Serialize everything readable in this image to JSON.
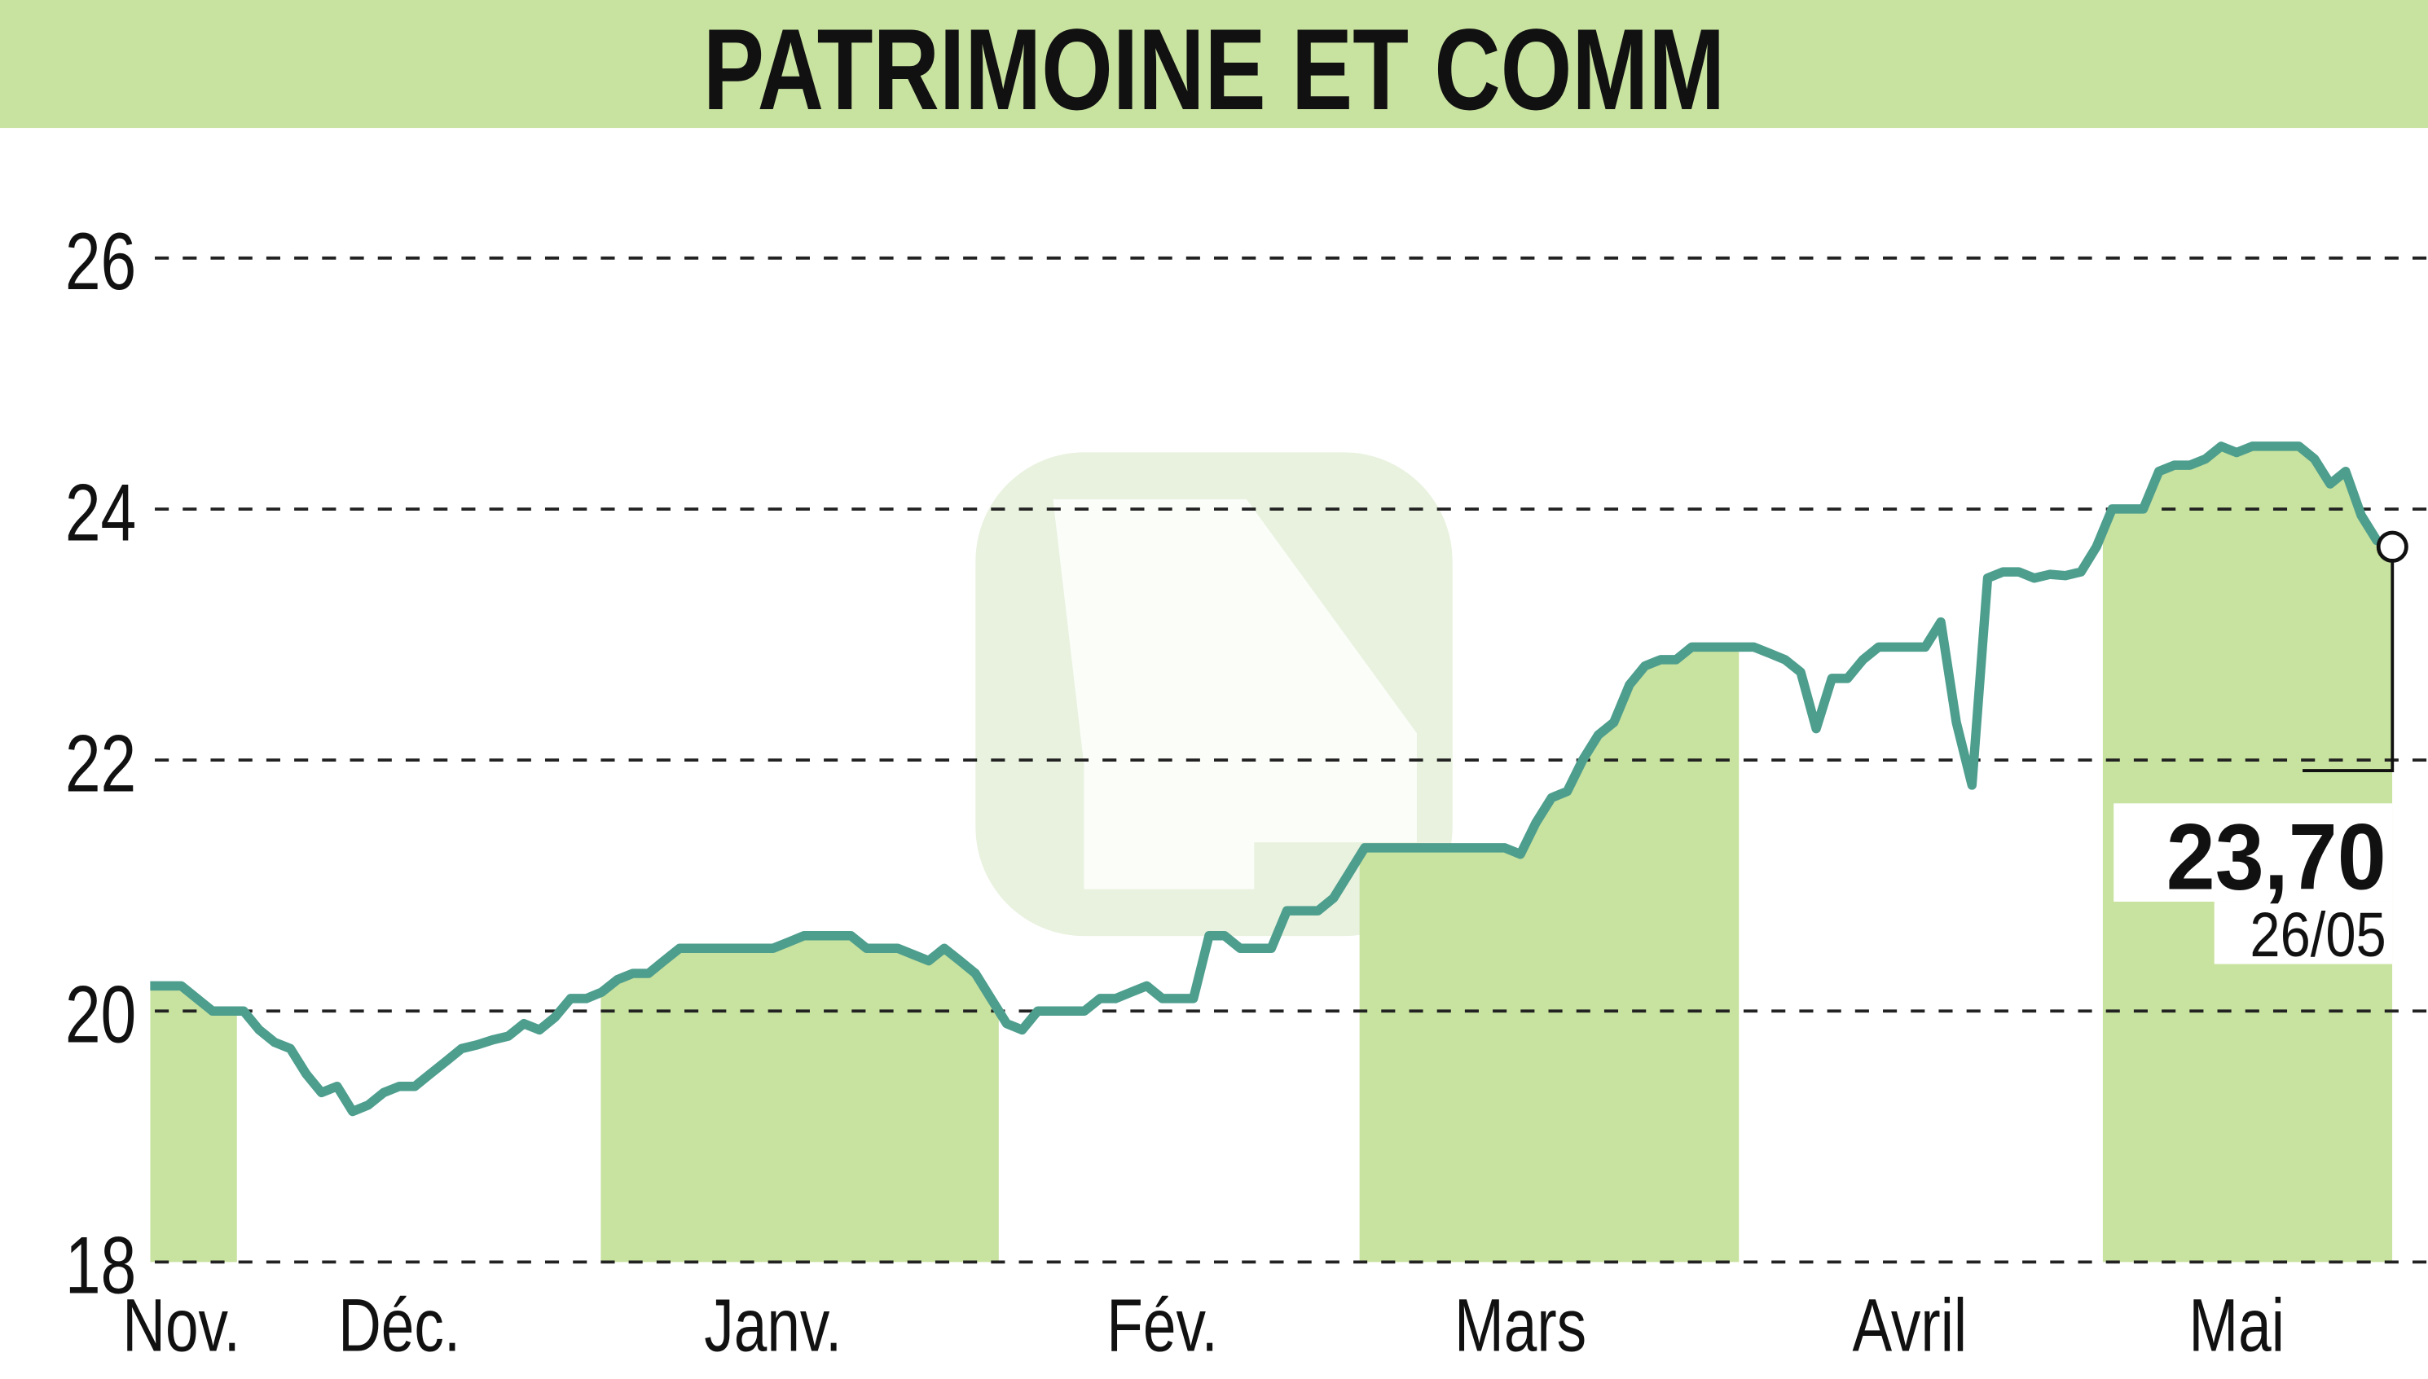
{
  "chart_data": {
    "type": "line",
    "title": "PATRIMOINE ET COMM",
    "color": "#4e9e8e",
    "values": [
      20.2,
      20.2,
      20.2,
      20.1,
      20.0,
      20.0,
      20.0,
      19.85,
      19.75,
      19.7,
      19.5,
      19.35,
      19.4,
      19.2,
      19.25,
      19.35,
      19.4,
      19.4,
      19.5,
      19.6,
      19.7,
      19.73,
      19.77,
      19.8,
      19.9,
      19.85,
      19.95,
      20.1,
      20.1,
      20.15,
      20.25,
      20.3,
      20.3,
      20.4,
      20.5,
      20.5,
      20.5,
      20.5,
      20.5,
      20.5,
      20.5,
      20.55,
      20.6,
      20.6,
      20.6,
      20.6,
      20.5,
      20.5,
      20.5,
      20.45,
      20.4,
      20.5,
      20.4,
      20.3,
      20.1,
      19.9,
      19.85,
      20.0,
      20.0,
      20.0,
      20.0,
      20.1,
      20.1,
      20.15,
      20.2,
      20.1,
      20.1,
      20.1,
      20.6,
      20.6,
      20.5,
      20.5,
      20.5,
      20.8,
      20.8,
      20.8,
      20.9,
      21.1,
      21.3,
      21.3,
      21.3,
      21.3,
      21.3,
      21.3,
      21.3,
      21.3,
      21.3,
      21.3,
      21.25,
      21.5,
      21.7,
      21.75,
      22.0,
      22.2,
      22.3,
      22.6,
      22.75,
      22.8,
      22.8,
      22.9,
      22.9,
      22.9,
      22.9,
      22.9,
      22.85,
      22.8,
      22.7,
      22.25,
      22.65,
      22.65,
      22.8,
      22.9,
      22.9,
      22.9,
      22.9,
      23.1,
      22.3,
      21.8,
      23.45,
      23.5,
      23.5,
      23.45,
      23.48,
      23.47,
      23.5,
      23.7,
      24.0,
      24.0,
      24.0,
      24.3,
      24.35,
      24.35,
      24.4,
      24.5,
      24.45,
      24.5,
      24.5,
      24.5,
      24.5,
      24.4,
      24.2,
      24.3,
      23.95,
      23.75,
      23.7
    ],
    "xticks": [
      {
        "value": 2,
        "label": "Nov."
      },
      {
        "value": 16,
        "label": "Déc."
      },
      {
        "value": 40,
        "label": "Janv."
      },
      {
        "value": 65,
        "label": "Fév."
      },
      {
        "value": 88,
        "label": "Mars"
      },
      {
        "value": 113,
        "label": "Avril"
      },
      {
        "value": 134,
        "label": "Mai"
      }
    ],
    "ylim": [
      18,
      27
    ],
    "yticks": [
      18,
      20,
      22,
      24,
      26
    ],
    "grid": true,
    "annotation": {
      "label": "23,70",
      "date": "26/05"
    }
  }
}
